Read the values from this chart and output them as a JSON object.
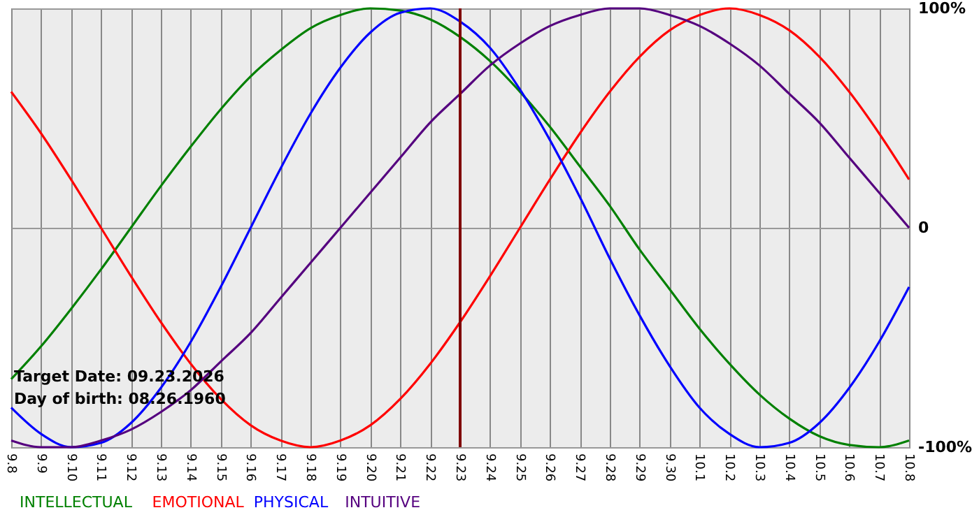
{
  "chart_data": {
    "type": "line",
    "categories": [
      "9.8",
      "9.9",
      "9.10",
      "9.11",
      "9.12",
      "9.13",
      "9.14",
      "9.15",
      "9.16",
      "9.17",
      "9.18",
      "9.19",
      "9.20",
      "9.21",
      "9.22",
      "9.23",
      "9.24",
      "9.25",
      "9.26",
      "9.27",
      "9.28",
      "9.29",
      "9.30",
      "10.1",
      "10.2",
      "10.3",
      "10.4",
      "10.5",
      "10.6",
      "10.7",
      "10.8"
    ],
    "series": [
      {
        "name": "INTELLECTUAL",
        "color": "#008000",
        "values": [
          -69,
          -54,
          -37,
          -19,
          0,
          19,
          37,
          54,
          69,
          81,
          91,
          97,
          100,
          99,
          95,
          87,
          76,
          62,
          46,
          28,
          10,
          -10,
          -28,
          -46,
          -62,
          -76,
          -87,
          -95,
          -99,
          -100,
          -97
        ]
      },
      {
        "name": "EMOTIONAL",
        "color": "#ff0000",
        "values": [
          62,
          43,
          22,
          0,
          -22,
          -43,
          -62,
          -78,
          -90,
          -97,
          -100,
          -97,
          -90,
          -78,
          -62,
          -43,
          -22,
          0,
          22,
          43,
          62,
          78,
          90,
          97,
          100,
          97,
          90,
          78,
          62,
          43,
          22
        ]
      },
      {
        "name": "PHYSICAL",
        "color": "#0000ff",
        "values": [
          -82,
          -94,
          -100,
          -98,
          -89,
          -73,
          -52,
          -27,
          0,
          27,
          52,
          73,
          89,
          98,
          100,
          94,
          82,
          63,
          40,
          14,
          -14,
          -40,
          -63,
          -82,
          -94,
          -100,
          -98,
          -89,
          -73,
          -52,
          -27
        ]
      },
      {
        "name": "INTUITIVE",
        "color": "#55007f",
        "values": [
          -97,
          -100,
          -100,
          -97,
          -92,
          -84,
          -74,
          -61,
          -48,
          -32,
          -16,
          0,
          16,
          32,
          48,
          61,
          74,
          84,
          92,
          97,
          100,
          100,
          97,
          92,
          84,
          74,
          61,
          48,
          32,
          16,
          0
        ]
      }
    ],
    "ylim": [
      -100,
      100
    ],
    "yticks": [
      {
        "value": 100,
        "label": "100%"
      },
      {
        "value": 0,
        "label": "0"
      },
      {
        "value": -100,
        "label": "-100%"
      }
    ],
    "grid": true,
    "marker": "none",
    "line_style": "solid",
    "ref_lines": [
      {
        "axis": "x",
        "value": "9.23",
        "color": "#800000"
      }
    ],
    "annotations": [
      "Target Date: 09.23.2026",
      "Day of birth: 08.26.1960"
    ]
  }
}
